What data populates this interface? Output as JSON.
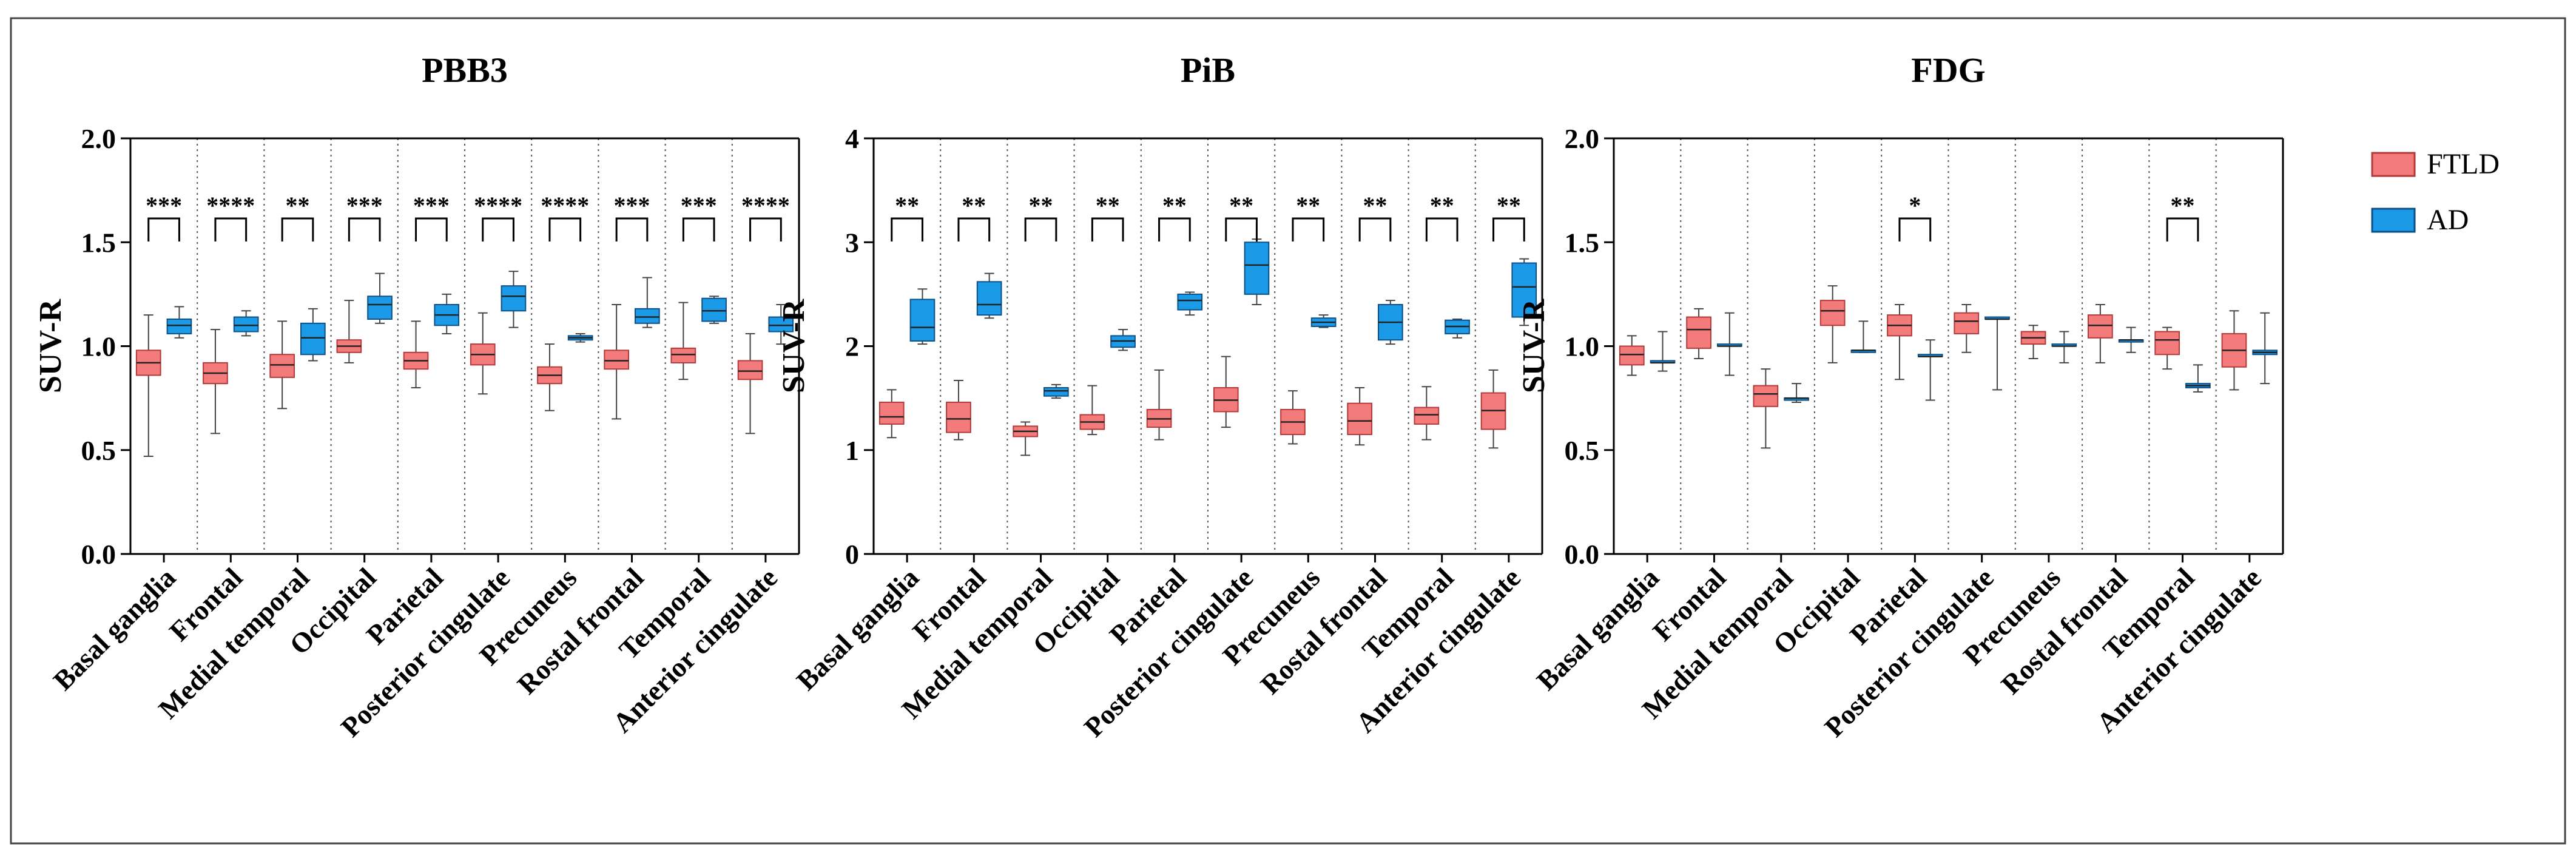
{
  "chart_data": [
    {
      "type": "box",
      "title": "PBB3",
      "ylabel": "SUV-R",
      "ylim": [
        0,
        2.0
      ],
      "yticks": [
        "0.0",
        "0.5",
        "1.0",
        "1.5",
        "2.0"
      ],
      "categories": [
        "Basal ganglia",
        "Frontal",
        "Medial temporal",
        "Occipital",
        "Parietal",
        "Posterior cingulate",
        "Precuneus",
        "Rostal frontal",
        "Temporal",
        "Anterior cingulate"
      ],
      "significance": [
        "***",
        "****",
        "**",
        "***",
        "***",
        "****",
        "****",
        "***",
        "***",
        "****"
      ],
      "series": [
        {
          "name": "FTLD",
          "boxes": [
            {
              "min": 0.47,
              "q1": 0.86,
              "median": 0.92,
              "q3": 0.98,
              "max": 1.15
            },
            {
              "min": 0.58,
              "q1": 0.82,
              "median": 0.87,
              "q3": 0.92,
              "max": 1.08
            },
            {
              "min": 0.7,
              "q1": 0.85,
              "median": 0.91,
              "q3": 0.96,
              "max": 1.12
            },
            {
              "min": 0.92,
              "q1": 0.97,
              "median": 1.0,
              "q3": 1.03,
              "max": 1.22
            },
            {
              "min": 0.8,
              "q1": 0.89,
              "median": 0.93,
              "q3": 0.97,
              "max": 1.12
            },
            {
              "min": 0.77,
              "q1": 0.91,
              "median": 0.96,
              "q3": 1.01,
              "max": 1.16
            },
            {
              "min": 0.69,
              "q1": 0.82,
              "median": 0.86,
              "q3": 0.9,
              "max": 1.01
            },
            {
              "min": 0.65,
              "q1": 0.89,
              "median": 0.93,
              "q3": 0.98,
              "max": 1.2
            },
            {
              "min": 0.84,
              "q1": 0.92,
              "median": 0.96,
              "q3": 0.99,
              "max": 1.21
            },
            {
              "min": 0.58,
              "q1": 0.84,
              "median": 0.88,
              "q3": 0.93,
              "max": 1.06
            }
          ]
        },
        {
          "name": "AD",
          "boxes": [
            {
              "min": 1.04,
              "q1": 1.06,
              "median": 1.1,
              "q3": 1.13,
              "max": 1.19
            },
            {
              "min": 1.05,
              "q1": 1.07,
              "median": 1.1,
              "q3": 1.14,
              "max": 1.17
            },
            {
              "min": 0.93,
              "q1": 0.96,
              "median": 1.04,
              "q3": 1.11,
              "max": 1.18
            },
            {
              "min": 1.11,
              "q1": 1.13,
              "median": 1.2,
              "q3": 1.24,
              "max": 1.35
            },
            {
              "min": 1.06,
              "q1": 1.1,
              "median": 1.15,
              "q3": 1.2,
              "max": 1.25
            },
            {
              "min": 1.09,
              "q1": 1.17,
              "median": 1.24,
              "q3": 1.29,
              "max": 1.36
            },
            {
              "min": 1.02,
              "q1": 1.03,
              "median": 1.04,
              "q3": 1.05,
              "max": 1.06
            },
            {
              "min": 1.09,
              "q1": 1.11,
              "median": 1.14,
              "q3": 1.18,
              "max": 1.33
            },
            {
              "min": 1.11,
              "q1": 1.12,
              "median": 1.17,
              "q3": 1.23,
              "max": 1.24
            },
            {
              "min": 1.01,
              "q1": 1.07,
              "median": 1.1,
              "q3": 1.14,
              "max": 1.2
            }
          ]
        }
      ]
    },
    {
      "type": "box",
      "title": "PiB",
      "ylabel": "SUV-R",
      "ylim": [
        0,
        4
      ],
      "yticks": [
        "0",
        "1",
        "2",
        "3",
        "4"
      ],
      "categories": [
        "Basal ganglia",
        "Frontal",
        "Medial temporal",
        "Occipital",
        "Parietal",
        "Posterior cingulate",
        "Precuneus",
        "Rostal frontal",
        "Temporal",
        "Anterior cingulate"
      ],
      "significance": [
        "**",
        "**",
        "**",
        "**",
        "**",
        "**",
        "**",
        "**",
        "**",
        "**"
      ],
      "series": [
        {
          "name": "FTLD",
          "boxes": [
            {
              "min": 1.12,
              "q1": 1.25,
              "median": 1.32,
              "q3": 1.46,
              "max": 1.58
            },
            {
              "min": 1.1,
              "q1": 1.17,
              "median": 1.3,
              "q3": 1.46,
              "max": 1.67
            },
            {
              "min": 0.95,
              "q1": 1.13,
              "median": 1.18,
              "q3": 1.23,
              "max": 1.27
            },
            {
              "min": 1.15,
              "q1": 1.2,
              "median": 1.27,
              "q3": 1.34,
              "max": 1.62
            },
            {
              "min": 1.1,
              "q1": 1.22,
              "median": 1.3,
              "q3": 1.39,
              "max": 1.77
            },
            {
              "min": 1.22,
              "q1": 1.37,
              "median": 1.48,
              "q3": 1.6,
              "max": 1.9
            },
            {
              "min": 1.06,
              "q1": 1.15,
              "median": 1.27,
              "q3": 1.39,
              "max": 1.57
            },
            {
              "min": 1.05,
              "q1": 1.15,
              "median": 1.28,
              "q3": 1.45,
              "max": 1.6
            },
            {
              "min": 1.1,
              "q1": 1.25,
              "median": 1.34,
              "q3": 1.41,
              "max": 1.61
            },
            {
              "min": 1.02,
              "q1": 1.2,
              "median": 1.38,
              "q3": 1.55,
              "max": 1.77
            }
          ]
        },
        {
          "name": "AD",
          "boxes": [
            {
              "min": 2.02,
              "q1": 2.05,
              "median": 2.18,
              "q3": 2.45,
              "max": 2.55
            },
            {
              "min": 2.27,
              "q1": 2.3,
              "median": 2.4,
              "q3": 2.62,
              "max": 2.7
            },
            {
              "min": 1.5,
              "q1": 1.52,
              "median": 1.57,
              "q3": 1.6,
              "max": 1.63
            },
            {
              "min": 1.96,
              "q1": 1.99,
              "median": 2.05,
              "q3": 2.1,
              "max": 2.16
            },
            {
              "min": 2.3,
              "q1": 2.35,
              "median": 2.44,
              "q3": 2.5,
              "max": 2.52
            },
            {
              "min": 2.4,
              "q1": 2.5,
              "median": 2.78,
              "q3": 3.0,
              "max": 3.03
            },
            {
              "min": 2.18,
              "q1": 2.19,
              "median": 2.23,
              "q3": 2.27,
              "max": 2.3
            },
            {
              "min": 2.02,
              "q1": 2.06,
              "median": 2.23,
              "q3": 2.4,
              "max": 2.44
            },
            {
              "min": 2.08,
              "q1": 2.12,
              "median": 2.19,
              "q3": 2.25,
              "max": 2.26
            },
            {
              "min": 2.2,
              "q1": 2.28,
              "median": 2.57,
              "q3": 2.8,
              "max": 2.84
            }
          ]
        }
      ]
    },
    {
      "type": "box",
      "title": "FDG",
      "ylabel": "SUV-R",
      "ylim": [
        0,
        2.0
      ],
      "yticks": [
        "0.0",
        "0.5",
        "1.0",
        "1.5",
        "2.0"
      ],
      "categories": [
        "Basal ganglia",
        "Frontal",
        "Medial temporal",
        "Occipital",
        "Parietal",
        "Posterior cingulate",
        "Precuneus",
        "Rostal frontal",
        "Temporal",
        "Anterior cingulate"
      ],
      "significance": [
        "",
        "",
        "",
        "",
        "*",
        "",
        "",
        "",
        "**",
        ""
      ],
      "series": [
        {
          "name": "FTLD",
          "boxes": [
            {
              "min": 0.86,
              "q1": 0.91,
              "median": 0.96,
              "q3": 1.0,
              "max": 1.05
            },
            {
              "min": 0.94,
              "q1": 0.99,
              "median": 1.08,
              "q3": 1.14,
              "max": 1.18
            },
            {
              "min": 0.51,
              "q1": 0.71,
              "median": 0.77,
              "q3": 0.81,
              "max": 0.89
            },
            {
              "min": 0.92,
              "q1": 1.1,
              "median": 1.17,
              "q3": 1.22,
              "max": 1.29
            },
            {
              "min": 0.84,
              "q1": 1.05,
              "median": 1.1,
              "q3": 1.15,
              "max": 1.2
            },
            {
              "min": 0.97,
              "q1": 1.06,
              "median": 1.12,
              "q3": 1.16,
              "max": 1.2
            },
            {
              "min": 0.94,
              "q1": 1.01,
              "median": 1.04,
              "q3": 1.07,
              "max": 1.1
            },
            {
              "min": 0.92,
              "q1": 1.04,
              "median": 1.1,
              "q3": 1.15,
              "max": 1.2
            },
            {
              "min": 0.89,
              "q1": 0.96,
              "median": 1.03,
              "q3": 1.07,
              "max": 1.09
            },
            {
              "min": 0.79,
              "q1": 0.9,
              "median": 0.98,
              "q3": 1.06,
              "max": 1.17
            }
          ]
        },
        {
          "name": "AD",
          "boxes": [
            {
              "min": 0.88,
              "q1": 0.92,
              "median": 0.92,
              "q3": 0.93,
              "max": 1.07
            },
            {
              "min": 0.86,
              "q1": 1.0,
              "median": 1.0,
              "q3": 1.01,
              "max": 1.16
            },
            {
              "min": 0.73,
              "q1": 0.74,
              "median": 0.75,
              "q3": 0.75,
              "max": 0.82
            },
            {
              "min": 0.97,
              "q1": 0.97,
              "median": 0.98,
              "q3": 0.98,
              "max": 1.12
            },
            {
              "min": 0.74,
              "q1": 0.95,
              "median": 0.95,
              "q3": 0.96,
              "max": 1.03
            },
            {
              "min": 0.79,
              "q1": 1.13,
              "median": 1.13,
              "q3": 1.14,
              "max": 1.14
            },
            {
              "min": 0.92,
              "q1": 1.0,
              "median": 1.0,
              "q3": 1.01,
              "max": 1.07
            },
            {
              "min": 0.97,
              "q1": 1.02,
              "median": 1.03,
              "q3": 1.03,
              "max": 1.09
            },
            {
              "min": 0.78,
              "q1": 0.8,
              "median": 0.81,
              "q3": 0.82,
              "max": 0.91
            },
            {
              "min": 0.82,
              "q1": 0.96,
              "median": 0.97,
              "q3": 0.98,
              "max": 1.16
            }
          ]
        }
      ]
    }
  ],
  "legend": {
    "items": [
      {
        "label": "FTLD",
        "color": "#f47b7b"
      },
      {
        "label": "AD",
        "color": "#1b9ae8"
      }
    ]
  },
  "colors": {
    "ftld_fill": "#f47b7b",
    "ftld_stroke": "#b23a3a",
    "ad_fill": "#1b9ae8",
    "ad_stroke": "#0d4f86",
    "axis": "#000000"
  }
}
